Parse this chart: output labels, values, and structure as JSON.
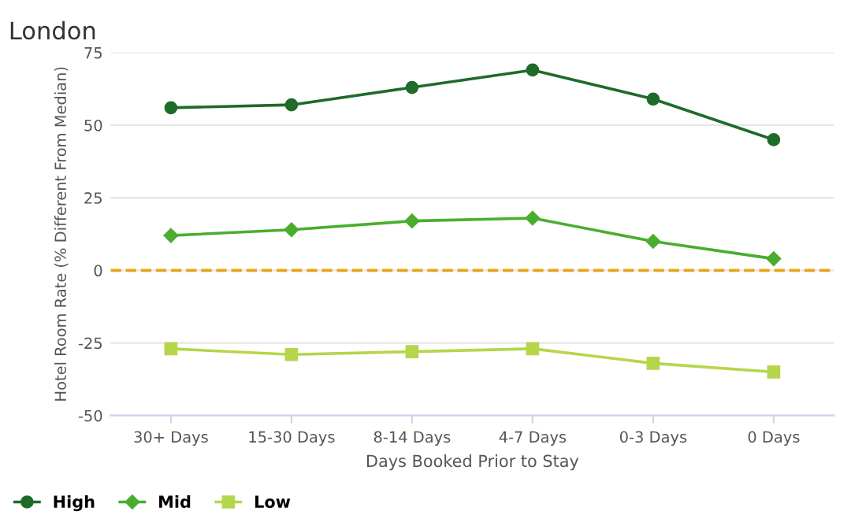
{
  "chart_data": {
    "type": "line",
    "title": "London",
    "xlabel": "Days Booked Prior to Stay",
    "ylabel": "Hotel Room Rate (% Different From Median)",
    "categories": [
      "30+ Days",
      "15-30 Days",
      "8-14 Days",
      "4-7 Days",
      "0-3 Days",
      "0 Days"
    ],
    "series": [
      {
        "name": "High",
        "color": "#1e6b2a",
        "marker": "circle",
        "values": [
          56,
          57,
          63,
          69,
          59,
          45
        ]
      },
      {
        "name": "Mid",
        "color": "#4aad2e",
        "marker": "diamond",
        "values": [
          12,
          14,
          17,
          18,
          10,
          4
        ]
      },
      {
        "name": "Low",
        "color": "#b5d64a",
        "marker": "square",
        "values": [
          -27,
          -29,
          -28,
          -27,
          -32,
          -35
        ]
      }
    ],
    "ylim": [
      -50,
      75
    ],
    "yticks": [
      -50,
      -25,
      0,
      25,
      50,
      75
    ],
    "grid": "y",
    "legend": "bottom left",
    "line_style": "solid",
    "ref_lines": [
      {
        "axis": "y",
        "value": 0,
        "color": "#e8a317",
        "line_style": "dashed"
      }
    ]
  }
}
